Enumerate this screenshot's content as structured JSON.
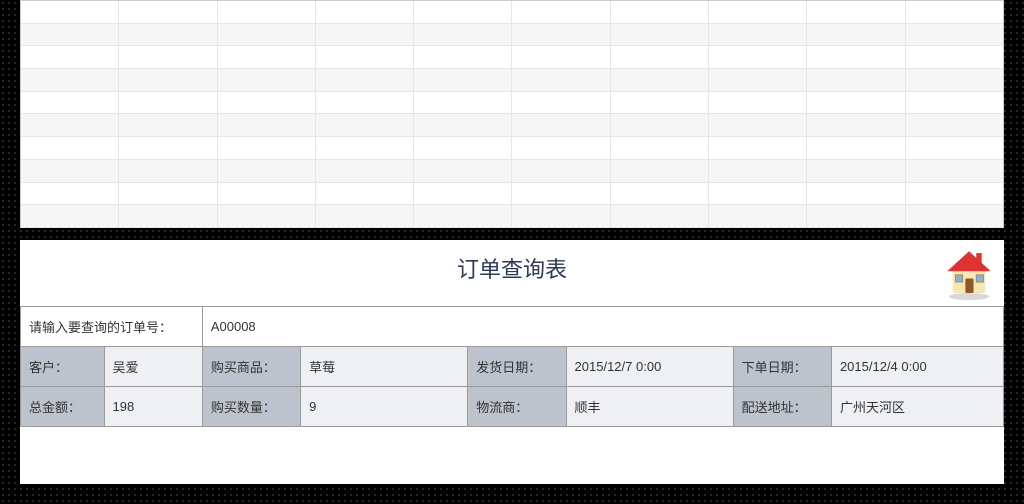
{
  "grid": {
    "empty_rows": 10,
    "columns": 10
  },
  "form": {
    "title": "订单查询表",
    "input_label": "请输入要查询的订单号：",
    "input_value": "A00008",
    "row1": {
      "customer_label": "客户：",
      "customer_value": "吴爱",
      "product_label": "购买商品：",
      "product_value": "草莓",
      "ship_date_label": "发货日期：",
      "ship_date_value": "2015/12/7 0:00",
      "order_date_label": "下单日期：",
      "order_date_value": "2015/12/4 0:00"
    },
    "row2": {
      "total_label": "总金额：",
      "total_value": "198",
      "qty_label": "购买数量：",
      "qty_value": "9",
      "logistics_label": "物流商：",
      "logistics_value": "顺丰",
      "address_label": "配送地址：",
      "address_value": "广州天河区"
    }
  },
  "colors": {
    "header_bg": "#bcc3cc",
    "value_bg": "#eef0f3",
    "border": "#9a9a9a",
    "title_color": "#2b3a56"
  }
}
